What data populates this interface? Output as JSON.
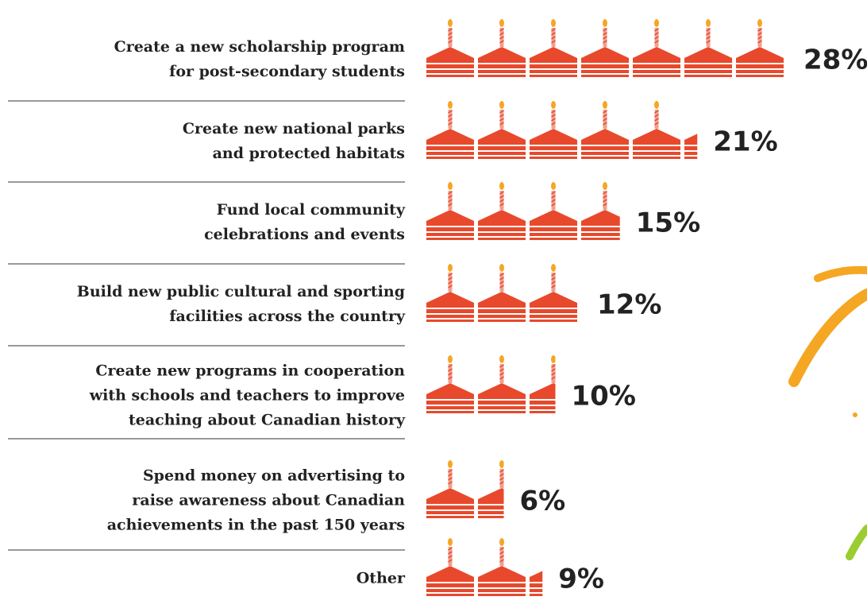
{
  "chart_data": {
    "type": "pictogram",
    "categories": [
      "Create a new scholarship program\nfor post-secondary students",
      "Create new national parks \nand protected habitats",
      "Fund local community\ncelebrations and events",
      "Build new public cultural and sporting\nfacilities across the country",
      "Create new programs in cooperation\nwith schools and teachers to improve\nteaching about Canadian history",
      "Spend money on advertising to\nraise awareness about Canadian\nachievements in the past 150 years",
      "Other"
    ],
    "values": [
      28,
      21,
      15,
      12,
      10,
      6,
      9
    ],
    "value_labels": [
      "28%",
      "21%",
      "15%",
      "12%",
      "10%",
      "6%",
      "9%"
    ],
    "color": "#e8492c"
  }
}
